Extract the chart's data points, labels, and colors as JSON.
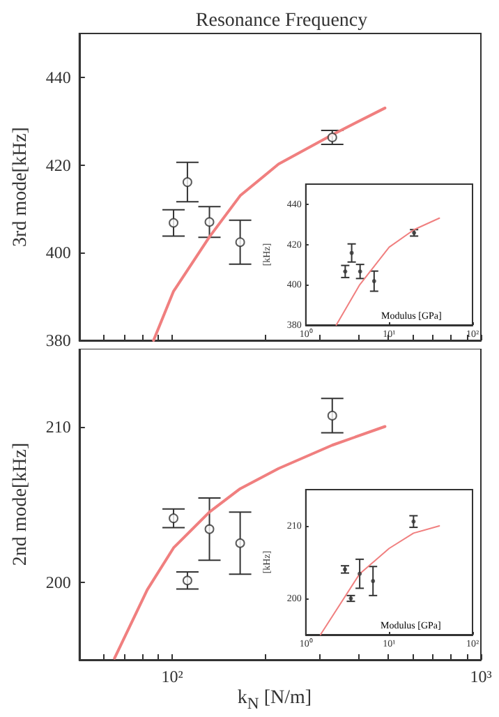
{
  "chart_data": [
    {
      "type": "scatter",
      "title": "Resonance Frequency",
      "ylabel": "3rd mode[kHz]",
      "log": "x",
      "xlim": [
        50,
        1000
      ],
      "ylim": [
        380,
        450
      ],
      "xticks": [
        {
          "value": 60,
          "label": null
        },
        {
          "value": 70,
          "label": null
        },
        {
          "value": 80,
          "label": null
        },
        {
          "value": 90,
          "label": null
        },
        {
          "value": 100,
          "label": null
        },
        {
          "value": 200,
          "label": null
        },
        {
          "value": 300,
          "label": null
        },
        {
          "value": 400,
          "label": null
        },
        {
          "value": 500,
          "label": null
        },
        {
          "value": 600,
          "label": null
        },
        {
          "value": 700,
          "label": null
        },
        {
          "value": 800,
          "label": null
        },
        {
          "value": 900,
          "label": null
        },
        {
          "value": 1000,
          "label": null
        }
      ],
      "yticks": [
        380,
        400,
        420,
        440
      ],
      "tick_labels": "y",
      "marker": "circle",
      "series": [
        {
          "color": "#333333",
          "x": [
            101,
            112,
            132,
            166,
            330
          ],
          "values": [
            406.8,
            416.1,
            407,
            402.4,
            426.3
          ],
          "errors": [
            3,
            4.5,
            3.5,
            5,
            1.6
          ]
        },
        {
          "type": "line",
          "marker": "none",
          "color": "#f07f7f",
          "x": [
            87,
            101,
            132,
            166,
            221,
            330,
            489
          ],
          "values": [
            380,
            391.2,
            403.6,
            413,
            420.2,
            426.9,
            433
          ]
        }
      ]
    },
    {
      "type": "scatter",
      "xlabel": "Modulus [GPa]",
      "ylabel": "[kHz]",
      "log": "x",
      "xlim": [
        1,
        100
      ],
      "ylim": [
        380,
        450
      ],
      "xticks": [
        {
          "value": 1,
          "label": "10⁰"
        },
        {
          "value": 10,
          "label": "10¹"
        },
        {
          "value": 100,
          "label": "10²"
        }
      ],
      "yticks": [
        380,
        400,
        420,
        440
      ],
      "marker": "circle",
      "series": [
        {
          "color": "#333333",
          "x": [
            2.97,
            3.55,
            4.48,
            6.6,
            19.9
          ],
          "values": [
            406.6,
            415.8,
            406.6,
            401.8,
            425.8
          ],
          "errors": [
            3,
            4.5,
            3.5,
            5,
            1.6
          ]
        },
        {
          "type": "line",
          "marker": "none",
          "color": "#f07f7f",
          "x": [
            2.32,
            4.43,
            10,
            19.9,
            40
          ],
          "values": [
            380,
            400,
            418.7,
            427.4,
            433.1
          ]
        }
      ]
    },
    {
      "type": "scatter",
      "xlabel": "k$_{N}$ [N/m]",
      "ylabel": "2nd mode[kHz]",
      "log": "x",
      "xlim": [
        50,
        1000
      ],
      "ylim": [
        195,
        215
      ],
      "xticks": [
        {
          "value": 60,
          "label": null
        },
        {
          "value": 70,
          "label": null
        },
        {
          "value": 80,
          "label": null
        },
        {
          "value": 90,
          "label": null
        },
        {
          "value": 100,
          "label": "10²"
        },
        {
          "value": 200,
          "label": null
        },
        {
          "value": 300,
          "label": null
        },
        {
          "value": 400,
          "label": null
        },
        {
          "value": 500,
          "label": null
        },
        {
          "value": 600,
          "label": null
        },
        {
          "value": 700,
          "label": null
        },
        {
          "value": 800,
          "label": null
        },
        {
          "value": 900,
          "label": null
        },
        {
          "value": 1000,
          "label": "10³"
        }
      ],
      "yticks": [
        200,
        210
      ],
      "marker": "circle",
      "series": [
        {
          "color": "#333333",
          "x": [
            101,
            112,
            132,
            166,
            330
          ],
          "values": [
            204.1,
            200.1,
            203.4,
            202.5,
            210.7
          ],
          "errors": [
            0.6,
            0.55,
            2,
            2,
            1.1
          ]
        },
        {
          "type": "line",
          "marker": "none",
          "color": "#f07f7f",
          "x": [
            65,
            83,
            101,
            132,
            166,
            221,
            330,
            489
          ],
          "values": [
            195.1,
            199.5,
            202.2,
            204.5,
            206,
            207.3,
            208.8,
            210
          ]
        }
      ]
    },
    {
      "type": "scatter",
      "xlabel": "Modulus [GPa]",
      "ylabel": "[kHz]",
      "log": "x",
      "xlim": [
        1,
        100
      ],
      "ylim": [
        195,
        215
      ],
      "xticks": [
        {
          "value": 1,
          "label": "10⁰"
        },
        {
          "value": 10,
          "label": "10¹"
        },
        {
          "value": 100,
          "label": "10²"
        }
      ],
      "yticks": [
        200,
        210
      ],
      "marker": "circle",
      "series": [
        {
          "color": "#333333",
          "x": [
            2.95,
            3.47,
            4.43,
            6.4,
            19.6
          ],
          "values": [
            204,
            200,
            203.4,
            202.4,
            210.6
          ],
          "errors": [
            0.5,
            0.4,
            2,
            2,
            0.8
          ]
        },
        {
          "type": "line",
          "marker": "none",
          "color": "#f07f7f",
          "x": [
            1.5,
            4.43,
            10,
            19.6,
            40
          ],
          "values": [
            195,
            203.4,
            206.9,
            209,
            210
          ]
        }
      ]
    }
  ]
}
